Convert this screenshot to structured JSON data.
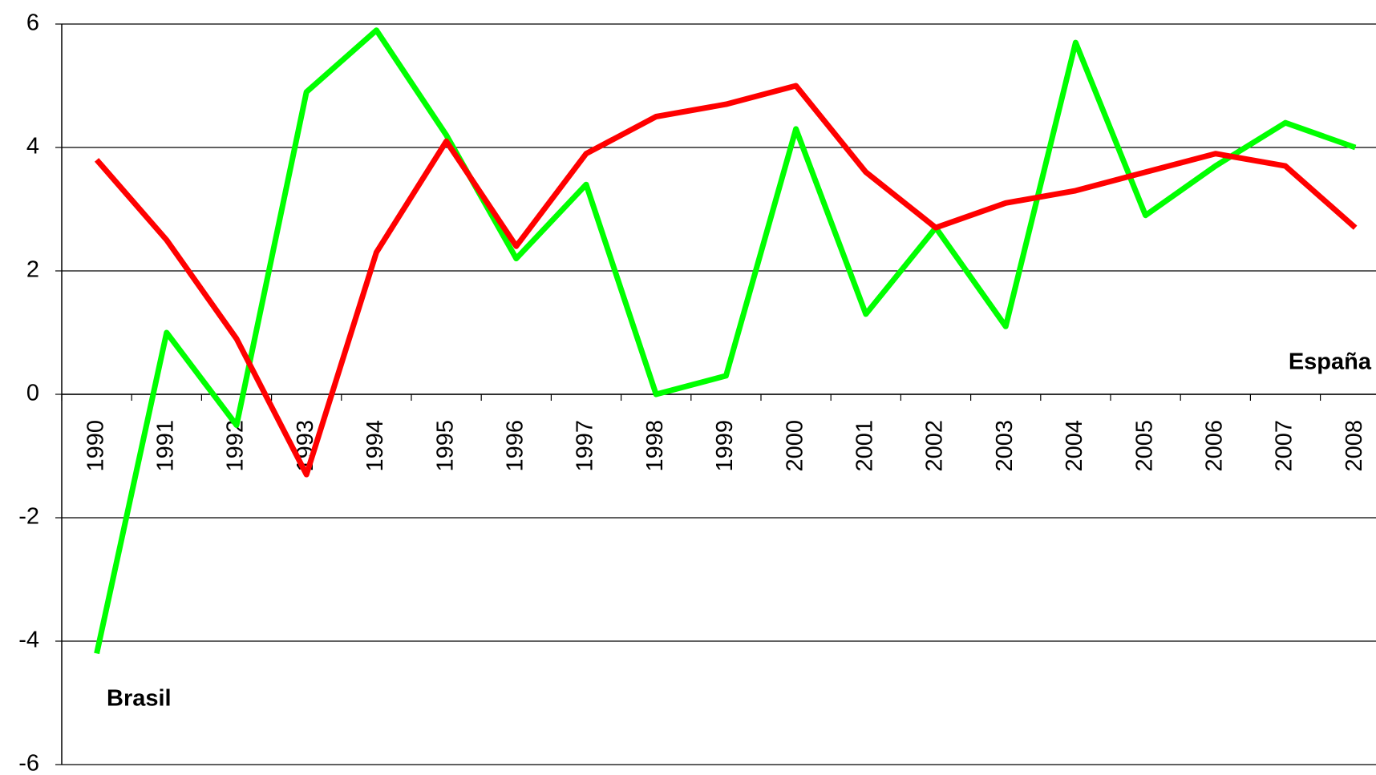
{
  "chart_data": {
    "type": "line",
    "categories": [
      "1990",
      "1991",
      "1992",
      "1993",
      "1994",
      "1995",
      "1996",
      "1997",
      "1998",
      "1999",
      "2000",
      "2001",
      "2002",
      "2003",
      "2004",
      "2005",
      "2006",
      "2007",
      "2008"
    ],
    "series": [
      {
        "name": "Brasil",
        "color": "#00ff00",
        "values": [
          -4.2,
          1.0,
          -0.5,
          4.9,
          5.9,
          4.2,
          2.2,
          3.4,
          0.0,
          0.3,
          4.3,
          1.3,
          2.7,
          1.1,
          5.7,
          2.9,
          3.7,
          4.4,
          4.0
        ]
      },
      {
        "name": "España",
        "color": "#ff0000",
        "values": [
          3.8,
          2.5,
          0.9,
          -1.3,
          2.3,
          4.1,
          2.4,
          3.9,
          4.5,
          4.7,
          5.0,
          3.6,
          2.7,
          3.1,
          3.3,
          3.6,
          3.9,
          3.7,
          2.7
        ]
      }
    ],
    "ylim": [
      -6,
      6
    ],
    "yticks": [
      -6,
      -4,
      -2,
      0,
      2,
      4,
      6
    ],
    "grid": true
  }
}
